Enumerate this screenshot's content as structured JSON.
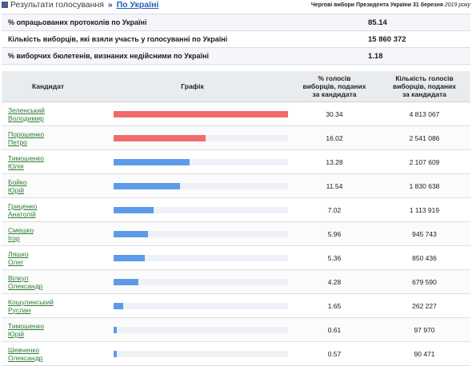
{
  "breadcrumb": {
    "root": "Результати голосування",
    "separator": "»",
    "current": "По Україні"
  },
  "election": {
    "title": "Чергові вибори Президента України 31 березня",
    "year": "2019 року"
  },
  "summary": [
    {
      "label": "% опрацьованих протоколів по Україні",
      "value": "85.14"
    },
    {
      "label": "Кількість виборців, які взяли участь у голосуванні по Україні",
      "value": "15 860 372"
    },
    {
      "label": "% виборчих бюлетенів, визнаних недійсними по Україні",
      "value": "1.18"
    }
  ],
  "table": {
    "headers": {
      "candidate": "Кандидат",
      "graph": "Графік",
      "pct": [
        "% голосів",
        "виборців, поданих",
        "за кандидата"
      ],
      "count": [
        "Кількість голосів",
        "виборців, поданих",
        "за кандидата"
      ]
    }
  },
  "colors": {
    "leader": "#f06b6b",
    "other": "#5b9bea",
    "track": "#eef2f7",
    "link": "#2e7d32"
  },
  "chart_data": {
    "type": "bar",
    "categories": [
      "Зеленський Володимир",
      "Порошенко Петро",
      "Тимошенко Юлія",
      "Бойко Юрій",
      "Гриценко Анатолій",
      "Смешко Ігор",
      "Ляшко Олег",
      "Вілкул Олександр",
      "Кошулинський Руслан",
      "Тимошенко Юрій",
      "Шевченко Олександр"
    ],
    "values": [
      30.34,
      16.02,
      13.28,
      11.54,
      7.02,
      5.96,
      5.36,
      4.28,
      1.65,
      0.61,
      0.57
    ],
    "ylim": [
      0,
      30.34
    ]
  },
  "candidates": [
    {
      "line1": "Зеленський",
      "line2": "Володимир",
      "pct": "30.34",
      "count": "4 813 067",
      "color": "#f06b6b"
    },
    {
      "line1": "Порошенко",
      "line2": "Петро",
      "pct": "16.02",
      "count": "2 541 086",
      "color": "#f06b6b"
    },
    {
      "line1": "Тимошенко",
      "line2": "Юлія",
      "pct": "13.28",
      "count": "2 107 609",
      "color": "#5b9bea"
    },
    {
      "line1": "Бойко",
      "line2": "Юрій",
      "pct": "11.54",
      "count": "1 830 638",
      "color": "#5b9bea"
    },
    {
      "line1": "Гриценко",
      "line2": "Анатолій",
      "pct": "7.02",
      "count": "1 113 919",
      "color": "#5b9bea"
    },
    {
      "line1": "Смешко",
      "line2": "Ігор",
      "pct": "5.96",
      "count": "945 743",
      "color": "#5b9bea"
    },
    {
      "line1": "Ляшко",
      "line2": "Олег",
      "pct": "5.36",
      "count": "850 436",
      "color": "#5b9bea"
    },
    {
      "line1": "Вілкул",
      "line2": "Олександр",
      "pct": "4.28",
      "count": "679 590",
      "color": "#5b9bea"
    },
    {
      "line1": "Кошулинський",
      "line2": "Руслан",
      "pct": "1.65",
      "count": "262 227",
      "color": "#5b9bea"
    },
    {
      "line1": "Тимошенко",
      "line2": "Юрій",
      "pct": "0.61",
      "count": "97 970",
      "color": "#5b9bea"
    },
    {
      "line1": "Шевченко",
      "line2": "Олександр",
      "pct": "0.57",
      "count": "90 471",
      "color": "#5b9bea"
    }
  ]
}
